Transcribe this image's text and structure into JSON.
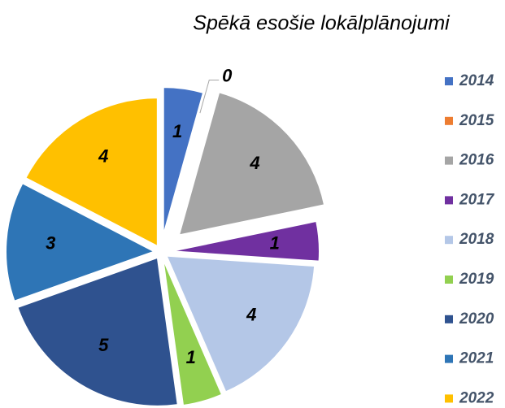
{
  "chart_data": {
    "type": "pie",
    "title": "Spēkā esošie lokālplānojumi",
    "categories": [
      "2014",
      "2015",
      "2016",
      "2017",
      "2018",
      "2019",
      "2020",
      "2021",
      "2022"
    ],
    "values": [
      1,
      0,
      4,
      1,
      4,
      1,
      5,
      3,
      4
    ],
    "colors": [
      "#4472c4",
      "#ed7d31",
      "#a5a5a5",
      "#7030a0",
      "#b4c7e7",
      "#92d050",
      "#2f528f",
      "#2e75b6",
      "#ffc000"
    ],
    "legend": "right"
  }
}
